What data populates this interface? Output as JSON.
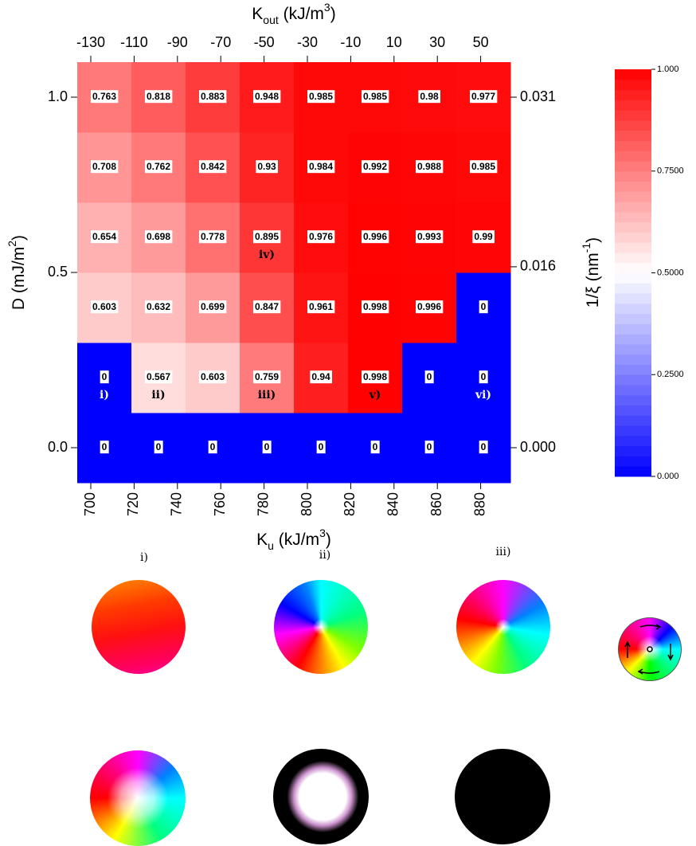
{
  "chart_data": {
    "type": "heatmap",
    "x_label": [
      "K",
      "u",
      " (kJ/m",
      "3",
      ")"
    ],
    "x2_label": [
      "K",
      "out",
      " (kJ/m",
      "3",
      ")"
    ],
    "y_label": [
      "D (mJ/m",
      "2",
      ")"
    ],
    "y2_label": [
      "1/ξ (nm",
      "-1",
      ")"
    ],
    "x": [
      706.25,
      731.25,
      756.25,
      781.25,
      806.25,
      831.25,
      856.25,
      881.25
    ],
    "y": [
      0,
      0.2,
      0.4,
      0.6,
      0.8,
      1.0
    ],
    "values": [
      [
        0,
        0,
        0,
        0,
        0,
        0,
        0,
        0
      ],
      [
        0,
        0.567,
        0.603,
        0.759,
        0.94,
        0.998,
        0,
        0
      ],
      [
        0.603,
        0.632,
        0.699,
        0.847,
        0.961,
        0.998,
        0.996,
        0
      ],
      [
        0.654,
        0.698,
        0.778,
        0.895,
        0.976,
        0.996,
        0.993,
        0.99
      ],
      [
        0.708,
        0.762,
        0.842,
        0.93,
        0.984,
        0.992,
        0.988,
        0.985
      ],
      [
        0.763,
        0.818,
        0.883,
        0.948,
        0.985,
        0.985,
        0.98,
        0.977
      ]
    ],
    "xlim": [
      693.75,
      893.75
    ],
    "xticks": [
      700,
      720,
      740,
      760,
      780,
      800,
      820,
      840,
      860,
      880
    ],
    "x2lim": [
      -136.25,
      63.75
    ],
    "x2ticks": [
      -130,
      -110,
      -90,
      -70,
      -50,
      -30,
      -10,
      10,
      30,
      50
    ],
    "ylim": [
      -0.1,
      1.1
    ],
    "yticks": [
      {
        "value": 0,
        "label": "0.0"
      },
      0.5,
      {
        "value": 1,
        "label": "1.0"
      }
    ],
    "y2lim": [
      -0.0031,
      0.0341
    ],
    "y2ticks": [
      {
        "value": 0,
        "label": "0.000"
      },
      0.016,
      0.031
    ],
    "colorbar": {
      "lim": [
        0,
        1
      ],
      "colors": [
        "#0000ff",
        "#ffffff",
        "#ff0000"
      ],
      "ticks": [
        {
          "value": 0,
          "label": "0.000"
        },
        {
          "value": 0.25,
          "label": "0.2500"
        },
        {
          "value": 0.5,
          "label": "0.5000"
        },
        {
          "value": 0.75,
          "label": "0.7500"
        },
        {
          "value": 1,
          "label": "1.000"
        }
      ]
    },
    "annotations": [
      "i)",
      "ii)",
      "iii)",
      "iv)",
      "v)",
      "vi)"
    ]
  },
  "panels": [
    "i)",
    "ii)",
    "iii)",
    "iv)",
    "v)",
    "vi)"
  ]
}
